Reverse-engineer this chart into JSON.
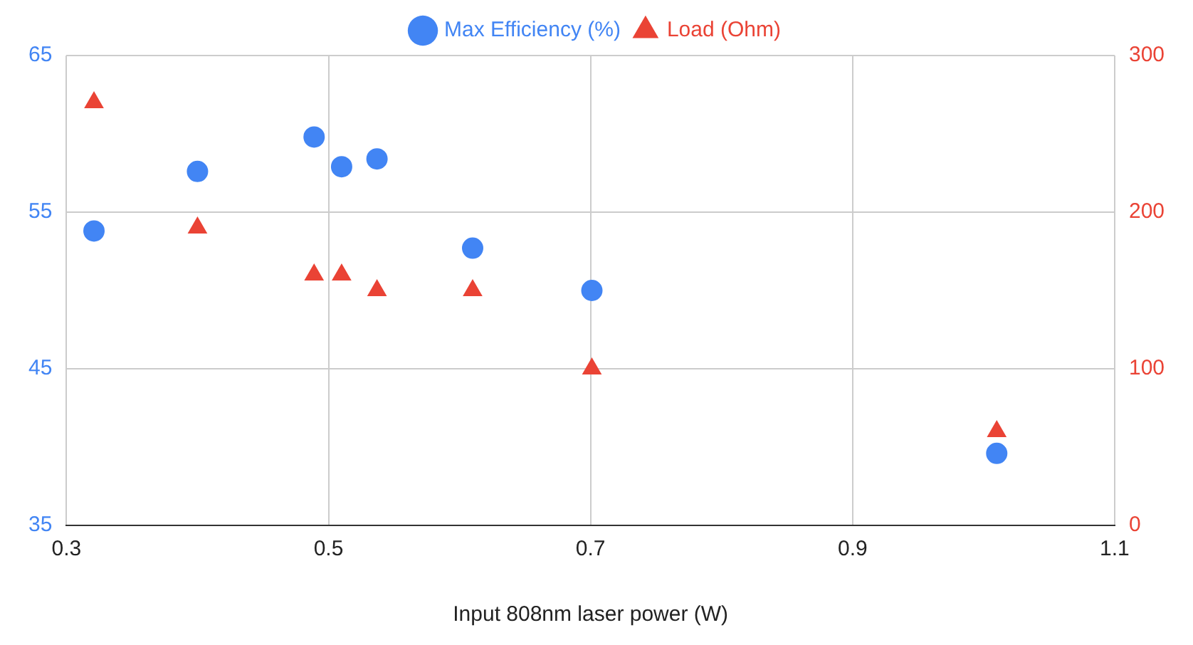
{
  "chart_data": {
    "type": "scatter",
    "xlabel": "Input 808nm laser power (W)",
    "legend": "top",
    "grid": true,
    "x": [
      0.321,
      0.4,
      0.489,
      0.51,
      0.537,
      0.61,
      0.701,
      1.01
    ],
    "series": [
      {
        "name": "Max Efficiency (%)",
        "color": "#4285f4",
        "marker": "circle",
        "values": [
          53.8,
          57.6,
          59.8,
          57.9,
          58.4,
          52.7,
          50.0,
          39.6
        ]
      },
      {
        "name": "Load (Ohm)",
        "color": "#ea4335",
        "marker": "triangle",
        "axis": "y2",
        "values": [
          270,
          190,
          160,
          160,
          150,
          150,
          100,
          60
        ]
      }
    ],
    "xlim": [
      0.3,
      1.1
    ],
    "xticks": [
      0.3,
      0.5,
      0.7,
      0.9,
      1.1
    ],
    "ylim": [
      35,
      65
    ],
    "yticks": [
      35,
      45,
      55,
      65
    ],
    "y2lim": [
      0,
      300
    ],
    "y2ticks": [
      0,
      100,
      200,
      300
    ]
  }
}
